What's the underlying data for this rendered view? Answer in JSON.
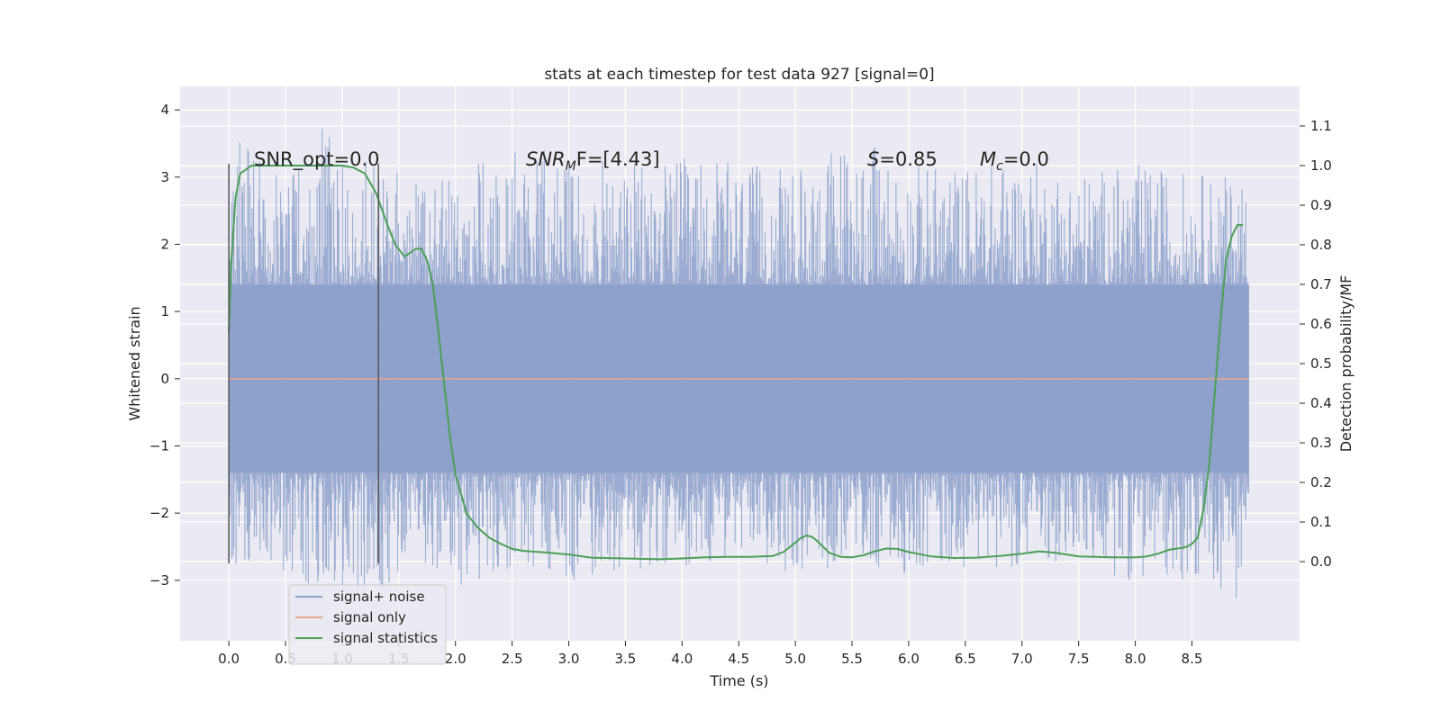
{
  "chart_data": {
    "type": "line",
    "title": "stats at each timestep for test data 927 [signal=0]",
    "xlabel": "Time (s)",
    "ylabel": "Whitened strain",
    "y2label": "Detection probability/MF",
    "xlim": [
      -0.43,
      9.45
    ],
    "ylim": [
      -3.9,
      4.35
    ],
    "y2lim": [
      -0.2,
      1.2
    ],
    "xticks": [
      "0.0",
      "0.5",
      "1.0",
      "1.5",
      "2.0",
      "2.5",
      "3.0",
      "3.5",
      "4.0",
      "4.5",
      "5.0",
      "5.5",
      "6.0",
      "6.5",
      "7.0",
      "7.5",
      "8.0",
      "8.5"
    ],
    "yticks": [
      "4",
      "3",
      "2",
      "1",
      "0",
      "−1",
      "−2",
      "−3"
    ],
    "y2ticks": [
      "1.1",
      "1.0",
      "0.9",
      "0.8",
      "0.7",
      "0.6",
      "0.5",
      "0.4",
      "0.3",
      "0.2",
      "0.1",
      "0.0"
    ],
    "grid": true,
    "legend_placement": "lower-left",
    "annotations": {
      "snr_opt": "SNR_opt=0.0",
      "snr_mf_base": "SNR",
      "snr_mf_sub": "M",
      "snr_mf_rest": "F=[4.43]",
      "s_label": "S",
      "s_value": "=0.85",
      "mc_base": "M",
      "mc_sub": "c",
      "mc_value": "=0.0"
    },
    "vlines": [
      0.0,
      1.32
    ],
    "series": [
      {
        "name": "signal+ noise",
        "axis": "left",
        "color": "#8da0cb",
        "x_range": [
          0.0,
          9.0
        ],
        "core_amplitude": 1.4,
        "peak_envelope": [
          [
            0.0,
            2.3
          ],
          [
            0.1,
            3.6
          ],
          [
            0.5,
            3.0
          ],
          [
            0.9,
            4.0
          ],
          [
            1.0,
            3.4
          ],
          [
            1.5,
            3.1
          ],
          [
            2.0,
            3.0
          ],
          [
            2.5,
            3.6
          ],
          [
            3.0,
            3.3
          ],
          [
            3.5,
            3.2
          ],
          [
            4.0,
            3.3
          ],
          [
            4.25,
            3.3
          ],
          [
            4.5,
            3.2
          ],
          [
            5.0,
            3.1
          ],
          [
            5.4,
            3.6
          ],
          [
            5.8,
            3.4
          ],
          [
            6.0,
            3.2
          ],
          [
            6.5,
            3.2
          ],
          [
            7.0,
            3.3
          ],
          [
            7.5,
            3.1
          ],
          [
            8.0,
            3.2
          ],
          [
            8.5,
            3.1
          ],
          [
            8.95,
            3.0
          ]
        ],
        "trough_envelope": [
          [
            0.0,
            -2.9
          ],
          [
            0.3,
            -2.7
          ],
          [
            0.75,
            -3.3
          ],
          [
            1.25,
            -3.2
          ],
          [
            1.75,
            -2.8
          ],
          [
            2.0,
            -3.1
          ],
          [
            2.5,
            -2.9
          ],
          [
            3.0,
            -3.0
          ],
          [
            3.35,
            -3.1
          ],
          [
            4.0,
            -2.8
          ],
          [
            4.5,
            -2.7
          ],
          [
            5.0,
            -2.9
          ],
          [
            5.5,
            -2.8
          ],
          [
            6.0,
            -2.9
          ],
          [
            6.5,
            -2.8
          ],
          [
            7.0,
            -2.8
          ],
          [
            7.5,
            -2.7
          ],
          [
            7.85,
            -3.0
          ],
          [
            8.5,
            -3.0
          ],
          [
            8.9,
            -3.3
          ]
        ]
      },
      {
        "name": "signal only",
        "axis": "left",
        "color": "#e8a58a",
        "x": [
          0.0,
          9.0
        ],
        "y": [
          0.0,
          0.0
        ]
      },
      {
        "name": "signal statistics",
        "axis": "right",
        "color": "#4aa055",
        "x": [
          0.0,
          0.02,
          0.06,
          0.1,
          0.15,
          0.2,
          0.3,
          0.5,
          0.8,
          1.0,
          1.1,
          1.2,
          1.3,
          1.4,
          1.47,
          1.55,
          1.6,
          1.65,
          1.7,
          1.75,
          1.8,
          1.85,
          1.9,
          1.95,
          2.0,
          2.1,
          2.2,
          2.3,
          2.4,
          2.5,
          2.6,
          2.8,
          3.0,
          3.2,
          3.5,
          3.8,
          4.0,
          4.2,
          4.4,
          4.6,
          4.8,
          4.9,
          5.0,
          5.05,
          5.1,
          5.15,
          5.2,
          5.3,
          5.4,
          5.5,
          5.6,
          5.7,
          5.8,
          5.9,
          6.0,
          6.2,
          6.4,
          6.6,
          6.8,
          7.0,
          7.15,
          7.3,
          7.5,
          7.8,
          8.0,
          8.1,
          8.2,
          8.3,
          8.4,
          8.45,
          8.5,
          8.55,
          8.6,
          8.65,
          8.7,
          8.75,
          8.8,
          8.85,
          8.9,
          8.95
        ],
        "y": [
          0.58,
          0.75,
          0.92,
          0.98,
          0.99,
          1.0,
          1.0,
          1.0,
          1.0,
          1.0,
          0.995,
          0.98,
          0.93,
          0.85,
          0.8,
          0.77,
          0.78,
          0.79,
          0.79,
          0.76,
          0.7,
          0.58,
          0.45,
          0.32,
          0.22,
          0.12,
          0.085,
          0.06,
          0.045,
          0.032,
          0.027,
          0.023,
          0.018,
          0.01,
          0.008,
          0.006,
          0.008,
          0.011,
          0.012,
          0.012,
          0.014,
          0.025,
          0.048,
          0.06,
          0.066,
          0.062,
          0.05,
          0.022,
          0.012,
          0.011,
          0.016,
          0.026,
          0.033,
          0.032,
          0.024,
          0.013,
          0.009,
          0.01,
          0.014,
          0.02,
          0.026,
          0.022,
          0.013,
          0.011,
          0.011,
          0.013,
          0.02,
          0.03,
          0.034,
          0.037,
          0.045,
          0.06,
          0.13,
          0.24,
          0.42,
          0.6,
          0.76,
          0.82,
          0.85,
          0.85
        ]
      }
    ]
  }
}
